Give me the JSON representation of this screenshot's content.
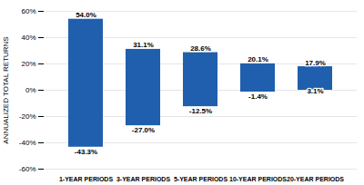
{
  "chart_data": {
    "type": "bar",
    "categories": [
      "1-YEAR PERIODS",
      "3-YEAR PERIODS",
      "5-YEAR PERIODS",
      "10-YEAR PERIODS",
      "20-YEAR PERIODS"
    ],
    "series": [
      {
        "color": "#1F5FAD",
        "values": [
          54.0,
          31.1,
          28.6,
          20.1,
          17.9
        ],
        "value_labels": [
          "54.0%",
          "31.1%",
          "28.6%",
          "20.1%",
          "17.9%"
        ]
      },
      {
        "color": "#1F5FAD",
        "values": [
          -43.3,
          -27.0,
          -12.5,
          -1.4,
          3.1
        ],
        "value_labels": [
          "-43.3%",
          "-27.0%",
          "-12.5%",
          "-1.4%",
          "3.1%"
        ]
      }
    ],
    "ylabel": "ANNUALIZED TOTAL RETURNS",
    "ylim": [
      -60,
      60
    ],
    "yticks": [
      {
        "value": -60,
        "label": "-60%"
      },
      {
        "value": -40,
        "label": "-40%"
      },
      {
        "value": -20,
        "label": "-20%"
      },
      {
        "value": 0,
        "label": "0%"
      },
      {
        "value": 20,
        "label": "20%"
      },
      {
        "value": 40,
        "label": "40%"
      },
      {
        "value": 60,
        "label": "60%"
      }
    ],
    "grid": true,
    "data_labels": true
  }
}
